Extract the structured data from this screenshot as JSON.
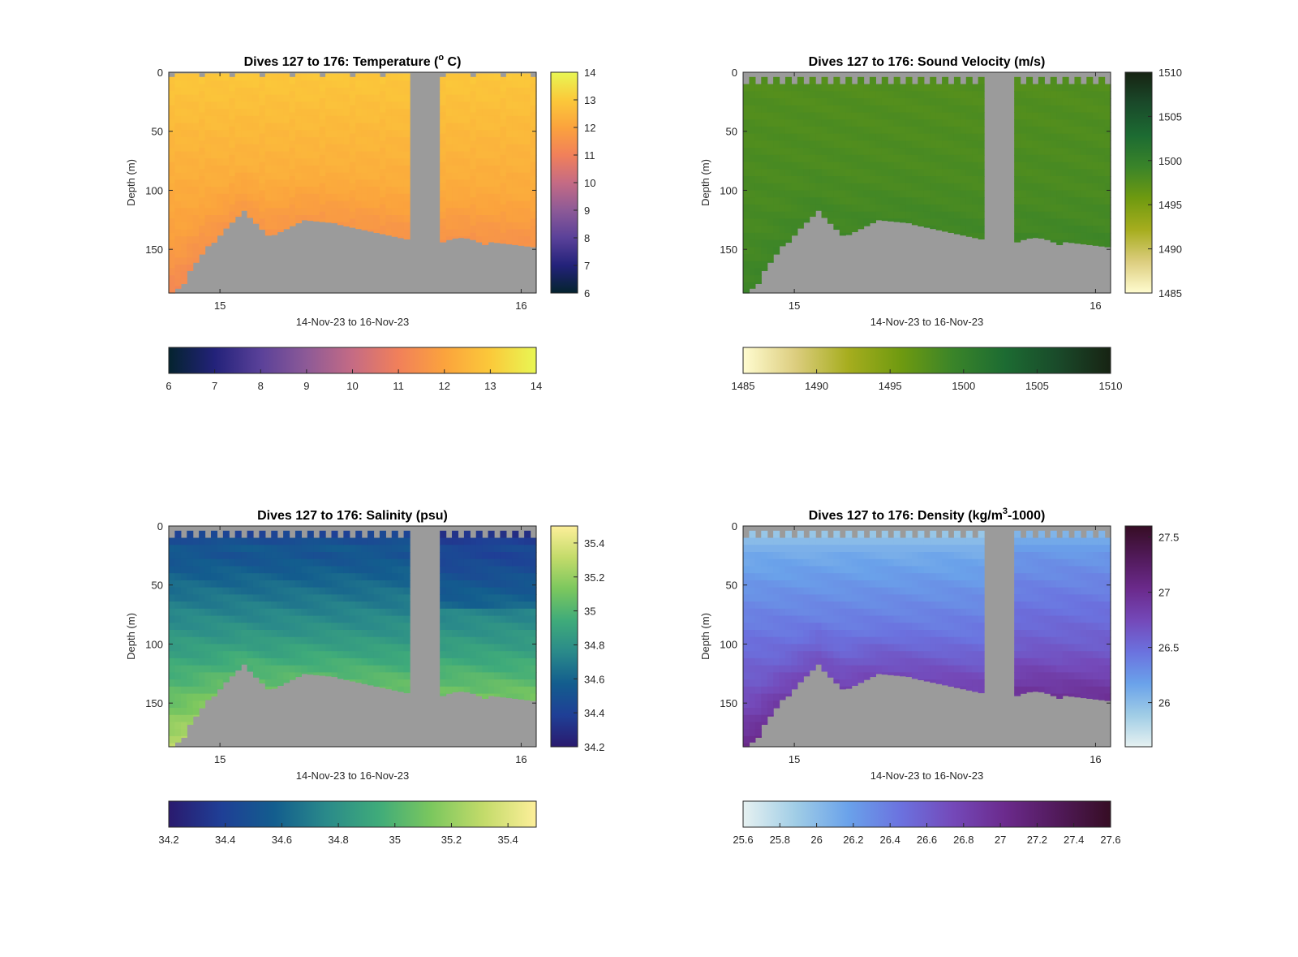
{
  "colormaps": {
    "thermal": [
      "#04232e",
      "#23227a",
      "#5a4199",
      "#8d5a97",
      "#c56b84",
      "#f1805a",
      "#fba33d",
      "#fbc93a",
      "#e8f754"
    ],
    "speed": [
      "#fffcd0",
      "#dccd7e",
      "#a6ad1e",
      "#6f9a10",
      "#3a8429",
      "#1c6b32",
      "#1a4a2a",
      "#172313"
    ],
    "haline": [
      "#2a1a6e",
      "#1f3f96",
      "#135d8e",
      "#2a8a8a",
      "#3fab7a",
      "#7bc75e",
      "#c3db6a",
      "#fdef9a"
    ],
    "dense": [
      "#e6f1f1",
      "#a0cde6",
      "#6aa2ea",
      "#6b72df",
      "#7449b9",
      "#6b2a8c",
      "#511a5a",
      "#360d24"
    ]
  },
  "style": {
    "bathymetry_color": "#9b9b9b",
    "gap_color": "#9b9b9b"
  },
  "chart_data": [
    {
      "type": "heatmap",
      "title": "Dives 127 to 176: Temperature (° C)",
      "title_main": "Dives 127 to 176: Temperature (",
      "title_super": "o",
      "title_tail": " C)",
      "xlabel": "14-Nov-23 to 16-Nov-23",
      "ylabel": "Depth (m)",
      "xticks": [
        "15",
        "16"
      ],
      "yticks": [
        0,
        50,
        100,
        150
      ],
      "ylim": [
        0,
        187
      ],
      "colormap": "thermal",
      "clim": [
        6,
        14
      ],
      "colorbar_ticks": [
        "6",
        "7",
        "8",
        "9",
        "10",
        "11",
        "12",
        "13",
        "14"
      ],
      "horizontal_colorbar_ticks": [
        "6",
        "7",
        "8",
        "9",
        "10",
        "11",
        "12",
        "13",
        "14"
      ],
      "surface_value": 12.9,
      "bottom_value": 11.9,
      "variant": "temp"
    },
    {
      "type": "heatmap",
      "title": "Dives 127 to 176: Sound Velocity (m/s)",
      "title_main": "Dives 127 to 176: Sound Velocity (m/s)",
      "title_super": "",
      "title_tail": "",
      "xlabel": "14-Nov-23 to 16-Nov-23",
      "ylabel": "Depth (m)",
      "xticks": [
        "15",
        "16"
      ],
      "yticks": [
        0,
        50,
        100,
        150
      ],
      "ylim": [
        0,
        187
      ],
      "colormap": "speed",
      "clim": [
        1485,
        1510
      ],
      "colorbar_ticks": [
        "1485",
        "1490",
        "1495",
        "1500",
        "1505",
        "1510"
      ],
      "horizontal_colorbar_ticks": [
        "1485",
        "1490",
        "1495",
        "1500",
        "1505",
        "1510"
      ],
      "surface_value": 1497.6,
      "bottom_value": 1498.4,
      "variant": "sv"
    },
    {
      "type": "heatmap",
      "title": "Dives 127 to 176: Salinity (psu)",
      "title_main": "Dives 127 to 176: Salinity (psu)",
      "title_super": "",
      "title_tail": "",
      "xlabel": "14-Nov-23 to 16-Nov-23",
      "ylabel": "Depth (m)",
      "xticks": [
        "15",
        "16"
      ],
      "yticks": [
        0,
        50,
        100,
        150
      ],
      "ylim": [
        0,
        187
      ],
      "colormap": "haline",
      "clim": [
        34.2,
        35.5
      ],
      "colorbar_ticks": [
        "34.2",
        "34.4",
        "34.6",
        "34.8",
        "35",
        "35.2",
        "35.4"
      ],
      "horizontal_colorbar_ticks": [
        "34.2",
        "34.4",
        "34.6",
        "34.8",
        "35",
        "35.2",
        "35.4"
      ],
      "surface_value": 34.4,
      "bottom_value": 35.25,
      "variant": "sal"
    },
    {
      "type": "heatmap",
      "title": "Dives 127 to 176: Density (kg/m3-1000)",
      "title_main": "Dives 127 to 176: Density (kg/m",
      "title_super": "3",
      "title_tail": "-1000)",
      "xlabel": "14-Nov-23 to 16-Nov-23",
      "ylabel": "Depth (m)",
      "xticks": [
        "15",
        "16"
      ],
      "yticks": [
        0,
        50,
        100,
        150
      ],
      "ylim": [
        0,
        187
      ],
      "colormap": "dense",
      "clim": [
        25.6,
        27.6
      ],
      "colorbar_ticks": [
        "26",
        "26.5",
        "27",
        "27.5"
      ],
      "horizontal_colorbar_ticks": [
        "25.6",
        "25.8",
        "26",
        "26.2",
        "26.4",
        "26.6",
        "26.8",
        "27",
        "27.2",
        "27.4",
        "27.6"
      ],
      "surface_value": 26.0,
      "bottom_value": 26.9,
      "variant": "dens"
    }
  ]
}
